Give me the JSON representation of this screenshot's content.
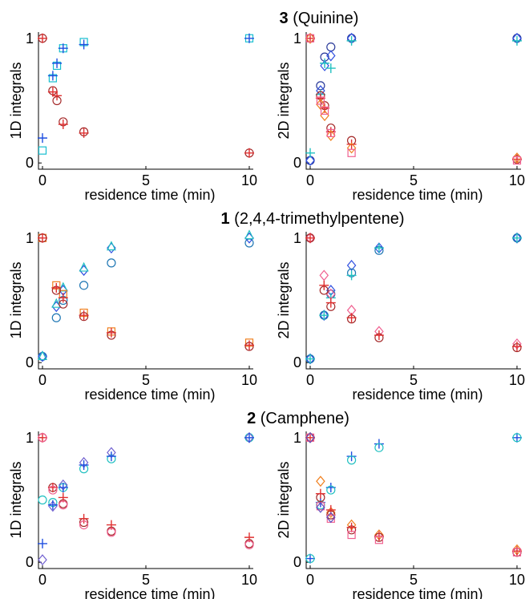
{
  "figure": {
    "rows": [
      {
        "title_bold": "3",
        "title_rest": " (Quinine)"
      },
      {
        "title_bold": "1",
        "title_rest": " (2,4,4-trimethylpentene)"
      },
      {
        "title_bold": "2",
        "title_rest": " (Camphene)"
      }
    ]
  },
  "chart_data": [
    {
      "type": "scatter",
      "title": "3 (Quinine)",
      "panel": "1D",
      "xlabel": "residence time (min)",
      "ylabel": "1D integrals",
      "xlim": [
        0,
        10
      ],
      "ylim": [
        -0.05,
        1.05
      ],
      "xticks": [
        0,
        5,
        10
      ],
      "yticks": [
        0,
        1
      ],
      "grid": false,
      "series": [
        {
          "marker": "square",
          "color": "#17becf",
          "x": [
            0,
            0.5,
            0.7,
            1.0,
            2.0,
            10
          ],
          "y": [
            0.1,
            0.68,
            0.78,
            0.92,
            0.97,
            1.0
          ]
        },
        {
          "marker": "plus",
          "color": "#1f4fe0",
          "x": [
            0,
            0.5,
            0.7,
            1.0,
            2.0,
            10
          ],
          "y": [
            0.2,
            0.7,
            0.8,
            0.92,
            0.95,
            1.0
          ]
        },
        {
          "marker": "circle",
          "color": "#a52a2a",
          "x": [
            0,
            0.5,
            0.7,
            1.0,
            2.0,
            10
          ],
          "y": [
            1.0,
            0.58,
            0.5,
            0.33,
            0.25,
            0.08
          ]
        },
        {
          "marker": "plus",
          "color": "#e03030",
          "x": [
            0,
            0.5,
            0.7,
            1.0,
            2.0,
            10
          ],
          "y": [
            1.0,
            0.57,
            0.54,
            0.31,
            0.24,
            0.08
          ]
        }
      ]
    },
    {
      "type": "scatter",
      "title": "3 (Quinine)",
      "panel": "2D",
      "xlabel": "residence time (min)",
      "ylabel": "2D integrals",
      "xlim": [
        0,
        10
      ],
      "ylim": [
        -0.05,
        1.05
      ],
      "xticks": [
        0,
        5,
        10
      ],
      "yticks": [
        0,
        1
      ],
      "grid": false,
      "series": [
        {
          "marker": "circle",
          "color": "#2a3a9a",
          "x": [
            0,
            0.5,
            0.7,
            1.0,
            2.0,
            10
          ],
          "y": [
            0.02,
            0.62,
            0.85,
            0.93,
            1.0,
            1.0
          ]
        },
        {
          "marker": "diamond",
          "color": "#3050e0",
          "x": [
            0,
            0.5,
            0.7,
            1.0,
            2.0,
            10
          ],
          "y": [
            0.02,
            0.58,
            0.78,
            0.86,
            1.0,
            1.0
          ]
        },
        {
          "marker": "plus",
          "color": "#20c0c0",
          "x": [
            0,
            0.5,
            0.7,
            1.0,
            2.0,
            10
          ],
          "y": [
            0.08,
            0.55,
            0.8,
            0.76,
            0.98,
            0.98
          ]
        },
        {
          "marker": "circle",
          "color": "#a52a2a",
          "x": [
            0,
            0.5,
            0.7,
            1.0,
            2.0,
            10
          ],
          "y": [
            1.0,
            0.54,
            0.46,
            0.28,
            0.18,
            0.03
          ]
        },
        {
          "marker": "plus",
          "color": "#e03030",
          "x": [
            0,
            0.5,
            0.7,
            1.0,
            2.0,
            10
          ],
          "y": [
            1.0,
            0.52,
            0.44,
            0.25,
            0.15,
            0.03
          ]
        },
        {
          "marker": "diamond",
          "color": "#f08020",
          "x": [
            0,
            0.5,
            0.7,
            1.0,
            2.0,
            10
          ],
          "y": [
            1.0,
            0.47,
            0.38,
            0.22,
            0.12,
            0.04
          ]
        },
        {
          "marker": "square",
          "color": "#f06090",
          "x": [
            0,
            0.5,
            0.7,
            1.0,
            2.0,
            10
          ],
          "y": [
            1.0,
            0.5,
            0.42,
            0.24,
            0.08,
            0.02
          ]
        }
      ]
    },
    {
      "type": "scatter",
      "title": "1 (2,4,4-trimethylpentene)",
      "panel": "1D",
      "xlabel": "residence time (min)",
      "ylabel": "1D integrals",
      "xlim": [
        0,
        10
      ],
      "ylim": [
        -0.05,
        1.05
      ],
      "xticks": [
        0,
        5,
        10
      ],
      "yticks": [
        0,
        1
      ],
      "grid": false,
      "series": [
        {
          "marker": "circle",
          "color": "#1f77b4",
          "x": [
            0,
            0.67,
            1.0,
            2.0,
            3.33,
            10
          ],
          "y": [
            0.05,
            0.36,
            0.5,
            0.62,
            0.8,
            0.96
          ]
        },
        {
          "marker": "diamond",
          "color": "#3050e0",
          "x": [
            0,
            0.67,
            1.0,
            2.0,
            3.33,
            10
          ],
          "y": [
            0.05,
            0.45,
            0.58,
            0.74,
            0.92,
            1.0
          ]
        },
        {
          "marker": "triangle",
          "color": "#20c0c0",
          "x": [
            0,
            0.67,
            1.0,
            2.0,
            3.33,
            10
          ],
          "y": [
            0.05,
            0.47,
            0.6,
            0.76,
            0.93,
            1.02
          ]
        },
        {
          "marker": "square",
          "color": "#f08020",
          "x": [
            0,
            0.67,
            1.0,
            2.0,
            3.33,
            10
          ],
          "y": [
            1.0,
            0.62,
            0.55,
            0.4,
            0.25,
            0.16
          ]
        },
        {
          "marker": "circle",
          "color": "#a52a2a",
          "x": [
            0,
            0.67,
            1.0,
            2.0,
            3.33,
            10
          ],
          "y": [
            1.0,
            0.58,
            0.47,
            0.37,
            0.22,
            0.13
          ]
        },
        {
          "marker": "plus",
          "color": "#e03030",
          "x": [
            0,
            0.67,
            1.0,
            2.0,
            3.33,
            10
          ],
          "y": [
            1.0,
            0.6,
            0.52,
            0.38,
            0.24,
            0.14
          ]
        }
      ]
    },
    {
      "type": "scatter",
      "title": "1 (2,4,4-trimethylpentene)",
      "panel": "2D",
      "xlabel": "residence time (min)",
      "ylabel": "2D integrals",
      "xlim": [
        0,
        10
      ],
      "ylim": [
        -0.05,
        1.05
      ],
      "xticks": [
        0,
        5,
        10
      ],
      "yticks": [
        0,
        1
      ],
      "grid": false,
      "series": [
        {
          "marker": "diamond",
          "color": "#3050e0",
          "x": [
            0,
            0.67,
            1.0,
            2.0,
            3.33,
            10
          ],
          "y": [
            0.03,
            0.38,
            0.58,
            0.78,
            0.92,
            1.0
          ]
        },
        {
          "marker": "circle",
          "color": "#1f77b4",
          "x": [
            0,
            0.67,
            1.0,
            2.0,
            3.33,
            10
          ],
          "y": [
            0.03,
            0.38,
            0.55,
            0.72,
            0.9,
            1.0
          ]
        },
        {
          "marker": "plus",
          "color": "#20c0c0",
          "x": [
            0,
            0.67,
            1.0,
            2.0,
            3.33,
            10
          ],
          "y": [
            0.03,
            0.38,
            0.52,
            0.7,
            0.92,
            1.0
          ]
        },
        {
          "marker": "diamond",
          "color": "#f06090",
          "x": [
            0,
            0.67,
            1.0,
            2.0,
            3.33,
            10
          ],
          "y": [
            1.0,
            0.7,
            0.55,
            0.42,
            0.25,
            0.15
          ]
        },
        {
          "marker": "circle",
          "color": "#a52a2a",
          "x": [
            0,
            0.67,
            1.0,
            2.0,
            3.33,
            10
          ],
          "y": [
            1.0,
            0.58,
            0.45,
            0.35,
            0.2,
            0.12
          ]
        },
        {
          "marker": "plus",
          "color": "#e03030",
          "x": [
            0,
            0.67,
            1.0,
            2.0,
            3.33,
            10
          ],
          "y": [
            1.0,
            0.62,
            0.48,
            0.36,
            0.22,
            0.13
          ]
        }
      ]
    },
    {
      "type": "scatter",
      "title": "2 (Camphene)",
      "panel": "1D",
      "xlabel": "residence time (min)",
      "ylabel": "1D integrals",
      "xlim": [
        0,
        10
      ],
      "ylim": [
        -0.05,
        1.05
      ],
      "xticks": [
        0,
        5,
        10
      ],
      "yticks": [
        0,
        1
      ],
      "grid": false,
      "series": [
        {
          "marker": "circle",
          "color": "#20c0c0",
          "x": [
            0,
            0.5,
            1.0,
            2.0,
            3.33,
            10
          ],
          "y": [
            0.5,
            0.48,
            0.6,
            0.75,
            0.83,
            1.0
          ]
        },
        {
          "marker": "diamond",
          "color": "#7060d0",
          "x": [
            0,
            0.5,
            1.0,
            2.0,
            3.33,
            10
          ],
          "y": [
            0.02,
            0.45,
            0.62,
            0.8,
            0.88,
            1.0
          ]
        },
        {
          "marker": "plus",
          "color": "#1f4fe0",
          "x": [
            0,
            0.5,
            1.0,
            2.0,
            3.33,
            10
          ],
          "y": [
            0.15,
            0.46,
            0.6,
            0.78,
            0.85,
            1.0
          ]
        },
        {
          "marker": "circle",
          "color": "#a52a2a",
          "x": [
            0,
            0.5,
            1.0,
            2.0,
            3.33,
            10
          ],
          "y": [
            1.0,
            0.6,
            0.47,
            0.32,
            0.25,
            0.15
          ]
        },
        {
          "marker": "plus",
          "color": "#e03030",
          "x": [
            0,
            0.5,
            1.0,
            2.0,
            3.33,
            10
          ],
          "y": [
            1.0,
            0.6,
            0.52,
            0.35,
            0.3,
            0.2
          ]
        },
        {
          "marker": "circle",
          "color": "#f06090",
          "x": [
            0,
            0.5,
            1.0,
            2.0,
            3.33,
            10
          ],
          "y": [
            1.0,
            0.58,
            0.46,
            0.3,
            0.24,
            0.14
          ]
        }
      ]
    },
    {
      "type": "scatter",
      "title": "2 (Camphene)",
      "panel": "2D",
      "xlabel": "residence time (min)",
      "ylabel": "2D integrals",
      "xlim": [
        0,
        10
      ],
      "ylim": [
        -0.05,
        1.05
      ],
      "xticks": [
        0,
        5,
        10
      ],
      "yticks": [
        0,
        1
      ],
      "grid": false,
      "series": [
        {
          "marker": "plus",
          "color": "#1f4fe0",
          "x": [
            0,
            0.5,
            1.0,
            2.0,
            3.33,
            10
          ],
          "y": [
            0.03,
            0.48,
            0.6,
            0.85,
            0.95,
            1.0
          ]
        },
        {
          "marker": "circle",
          "color": "#20c0c0",
          "x": [
            0,
            0.5,
            1.0,
            2.0,
            3.33,
            10
          ],
          "y": [
            0.03,
            0.46,
            0.58,
            0.82,
            0.92,
            1.0
          ]
        },
        {
          "marker": "diamond",
          "color": "#f08020",
          "x": [
            0,
            0.5,
            1.0,
            2.0,
            3.33,
            10
          ],
          "y": [
            1.0,
            0.65,
            0.4,
            0.3,
            0.22,
            0.1
          ]
        },
        {
          "marker": "circle",
          "color": "#a52a2a",
          "x": [
            0,
            0.5,
            1.0,
            2.0,
            3.33,
            10
          ],
          "y": [
            1.0,
            0.52,
            0.38,
            0.26,
            0.2,
            0.08
          ]
        },
        {
          "marker": "plus",
          "color": "#e03030",
          "x": [
            0,
            0.5,
            1.0,
            2.0,
            3.33,
            10
          ],
          "y": [
            1.0,
            0.55,
            0.42,
            0.28,
            0.21,
            0.09
          ]
        },
        {
          "marker": "square",
          "color": "#f06090",
          "x": [
            0,
            0.5,
            1.0,
            2.0,
            3.33,
            10
          ],
          "y": [
            1.0,
            0.45,
            0.35,
            0.22,
            0.18,
            0.08
          ]
        },
        {
          "marker": "diamond",
          "color": "#6050c0",
          "x": [
            0,
            0.5,
            1.0
          ],
          "y": [
            1.0,
            0.44,
            0.36
          ]
        }
      ]
    }
  ]
}
